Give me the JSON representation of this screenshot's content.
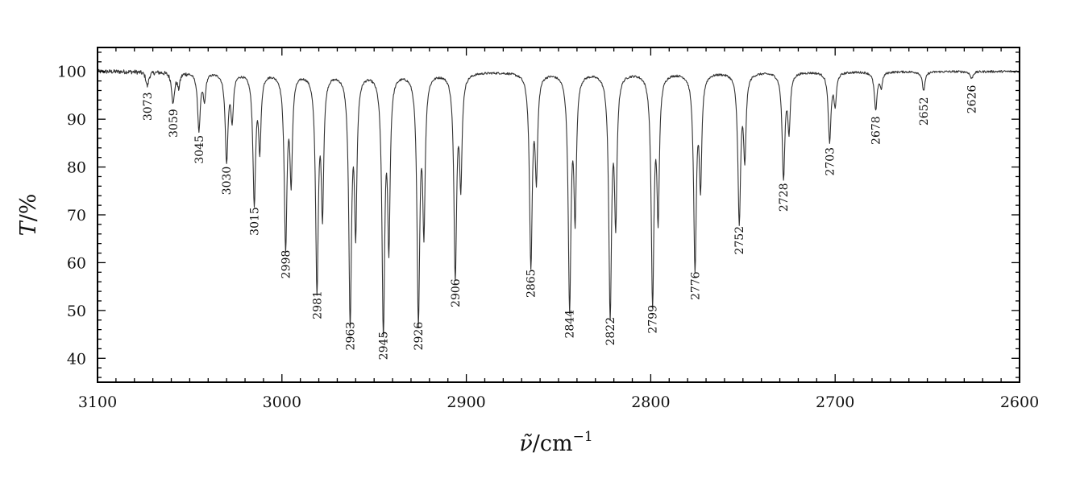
{
  "chart_data": {
    "type": "line",
    "title": "",
    "xlabel": {
      "symbol": "ν̃",
      "unit": "cm",
      "exponent": "−1"
    },
    "ylabel": {
      "symbol": "T",
      "unit": "%"
    },
    "xlim": [
      3100,
      2600
    ],
    "ylim": [
      35,
      105
    ],
    "x_reversed": true,
    "grid": false,
    "legend": "none",
    "xticks": [
      {
        "value": 3100,
        "label": "3100"
      },
      {
        "value": 3000,
        "label": "3000"
      },
      {
        "value": 2900,
        "label": "2900"
      },
      {
        "value": 2800,
        "label": "2800"
      },
      {
        "value": 2700,
        "label": "2700"
      },
      {
        "value": 2600,
        "label": "2600"
      }
    ],
    "yticks": [
      {
        "value": 40,
        "label": "40"
      },
      {
        "value": 50,
        "label": "50"
      },
      {
        "value": 60,
        "label": "60"
      },
      {
        "value": 70,
        "label": "70"
      },
      {
        "value": 80,
        "label": "80"
      },
      {
        "value": 90,
        "label": "90"
      },
      {
        "value": 100,
        "label": "100"
      }
    ],
    "baseline": 100,
    "peaks": [
      {
        "x": 3073,
        "y": 97,
        "label": "3073"
      },
      {
        "x": 3059,
        "y": 93.5,
        "label": "3059"
      },
      {
        "x": 3045,
        "y": 88,
        "label": "3045"
      },
      {
        "x": 3030,
        "y": 81.5,
        "label": "3030"
      },
      {
        "x": 3015,
        "y": 73,
        "label": "3015"
      },
      {
        "x": 2998,
        "y": 64,
        "label": "2998"
      },
      {
        "x": 2981,
        "y": 55.5,
        "label": "2981"
      },
      {
        "x": 2963,
        "y": 49,
        "label": "2963"
      },
      {
        "x": 2945,
        "y": 47,
        "label": "2945"
      },
      {
        "x": 2926,
        "y": 49,
        "label": "2926"
      },
      {
        "x": 2906,
        "y": 58,
        "label": "2906"
      },
      {
        "x": 2865,
        "y": 60,
        "label": "2865"
      },
      {
        "x": 2844,
        "y": 51.5,
        "label": "2844"
      },
      {
        "x": 2822,
        "y": 50,
        "label": "2822"
      },
      {
        "x": 2799,
        "y": 52.5,
        "label": "2799"
      },
      {
        "x": 2776,
        "y": 59.5,
        "label": "2776"
      },
      {
        "x": 2752,
        "y": 69,
        "label": "2752"
      },
      {
        "x": 2728,
        "y": 78,
        "label": "2728"
      },
      {
        "x": 2703,
        "y": 85.5,
        "label": "2703"
      },
      {
        "x": 2678,
        "y": 92,
        "label": "2678"
      },
      {
        "x": 2652,
        "y": 96,
        "label": "2652"
      },
      {
        "x": 2626,
        "y": 98.5,
        "label": "2626"
      }
    ],
    "shoulders": [
      {
        "x": 3056,
        "y": 97
      },
      {
        "x": 3042,
        "y": 94.5
      },
      {
        "x": 3027,
        "y": 90.5
      },
      {
        "x": 3012,
        "y": 85
      },
      {
        "x": 2995,
        "y": 78.5
      },
      {
        "x": 2978,
        "y": 72.5
      },
      {
        "x": 2960,
        "y": 69
      },
      {
        "x": 2942,
        "y": 66
      },
      {
        "x": 2923,
        "y": 69
      },
      {
        "x": 2903,
        "y": 78
      },
      {
        "x": 2862,
        "y": 79.5
      },
      {
        "x": 2841,
        "y": 71.5
      },
      {
        "x": 2819,
        "y": 70.5
      },
      {
        "x": 2796,
        "y": 71.5
      },
      {
        "x": 2773,
        "y": 77.5
      },
      {
        "x": 2749,
        "y": 83
      },
      {
        "x": 2725,
        "y": 88.5
      },
      {
        "x": 2700,
        "y": 93.5
      },
      {
        "x": 2675,
        "y": 97
      }
    ]
  }
}
